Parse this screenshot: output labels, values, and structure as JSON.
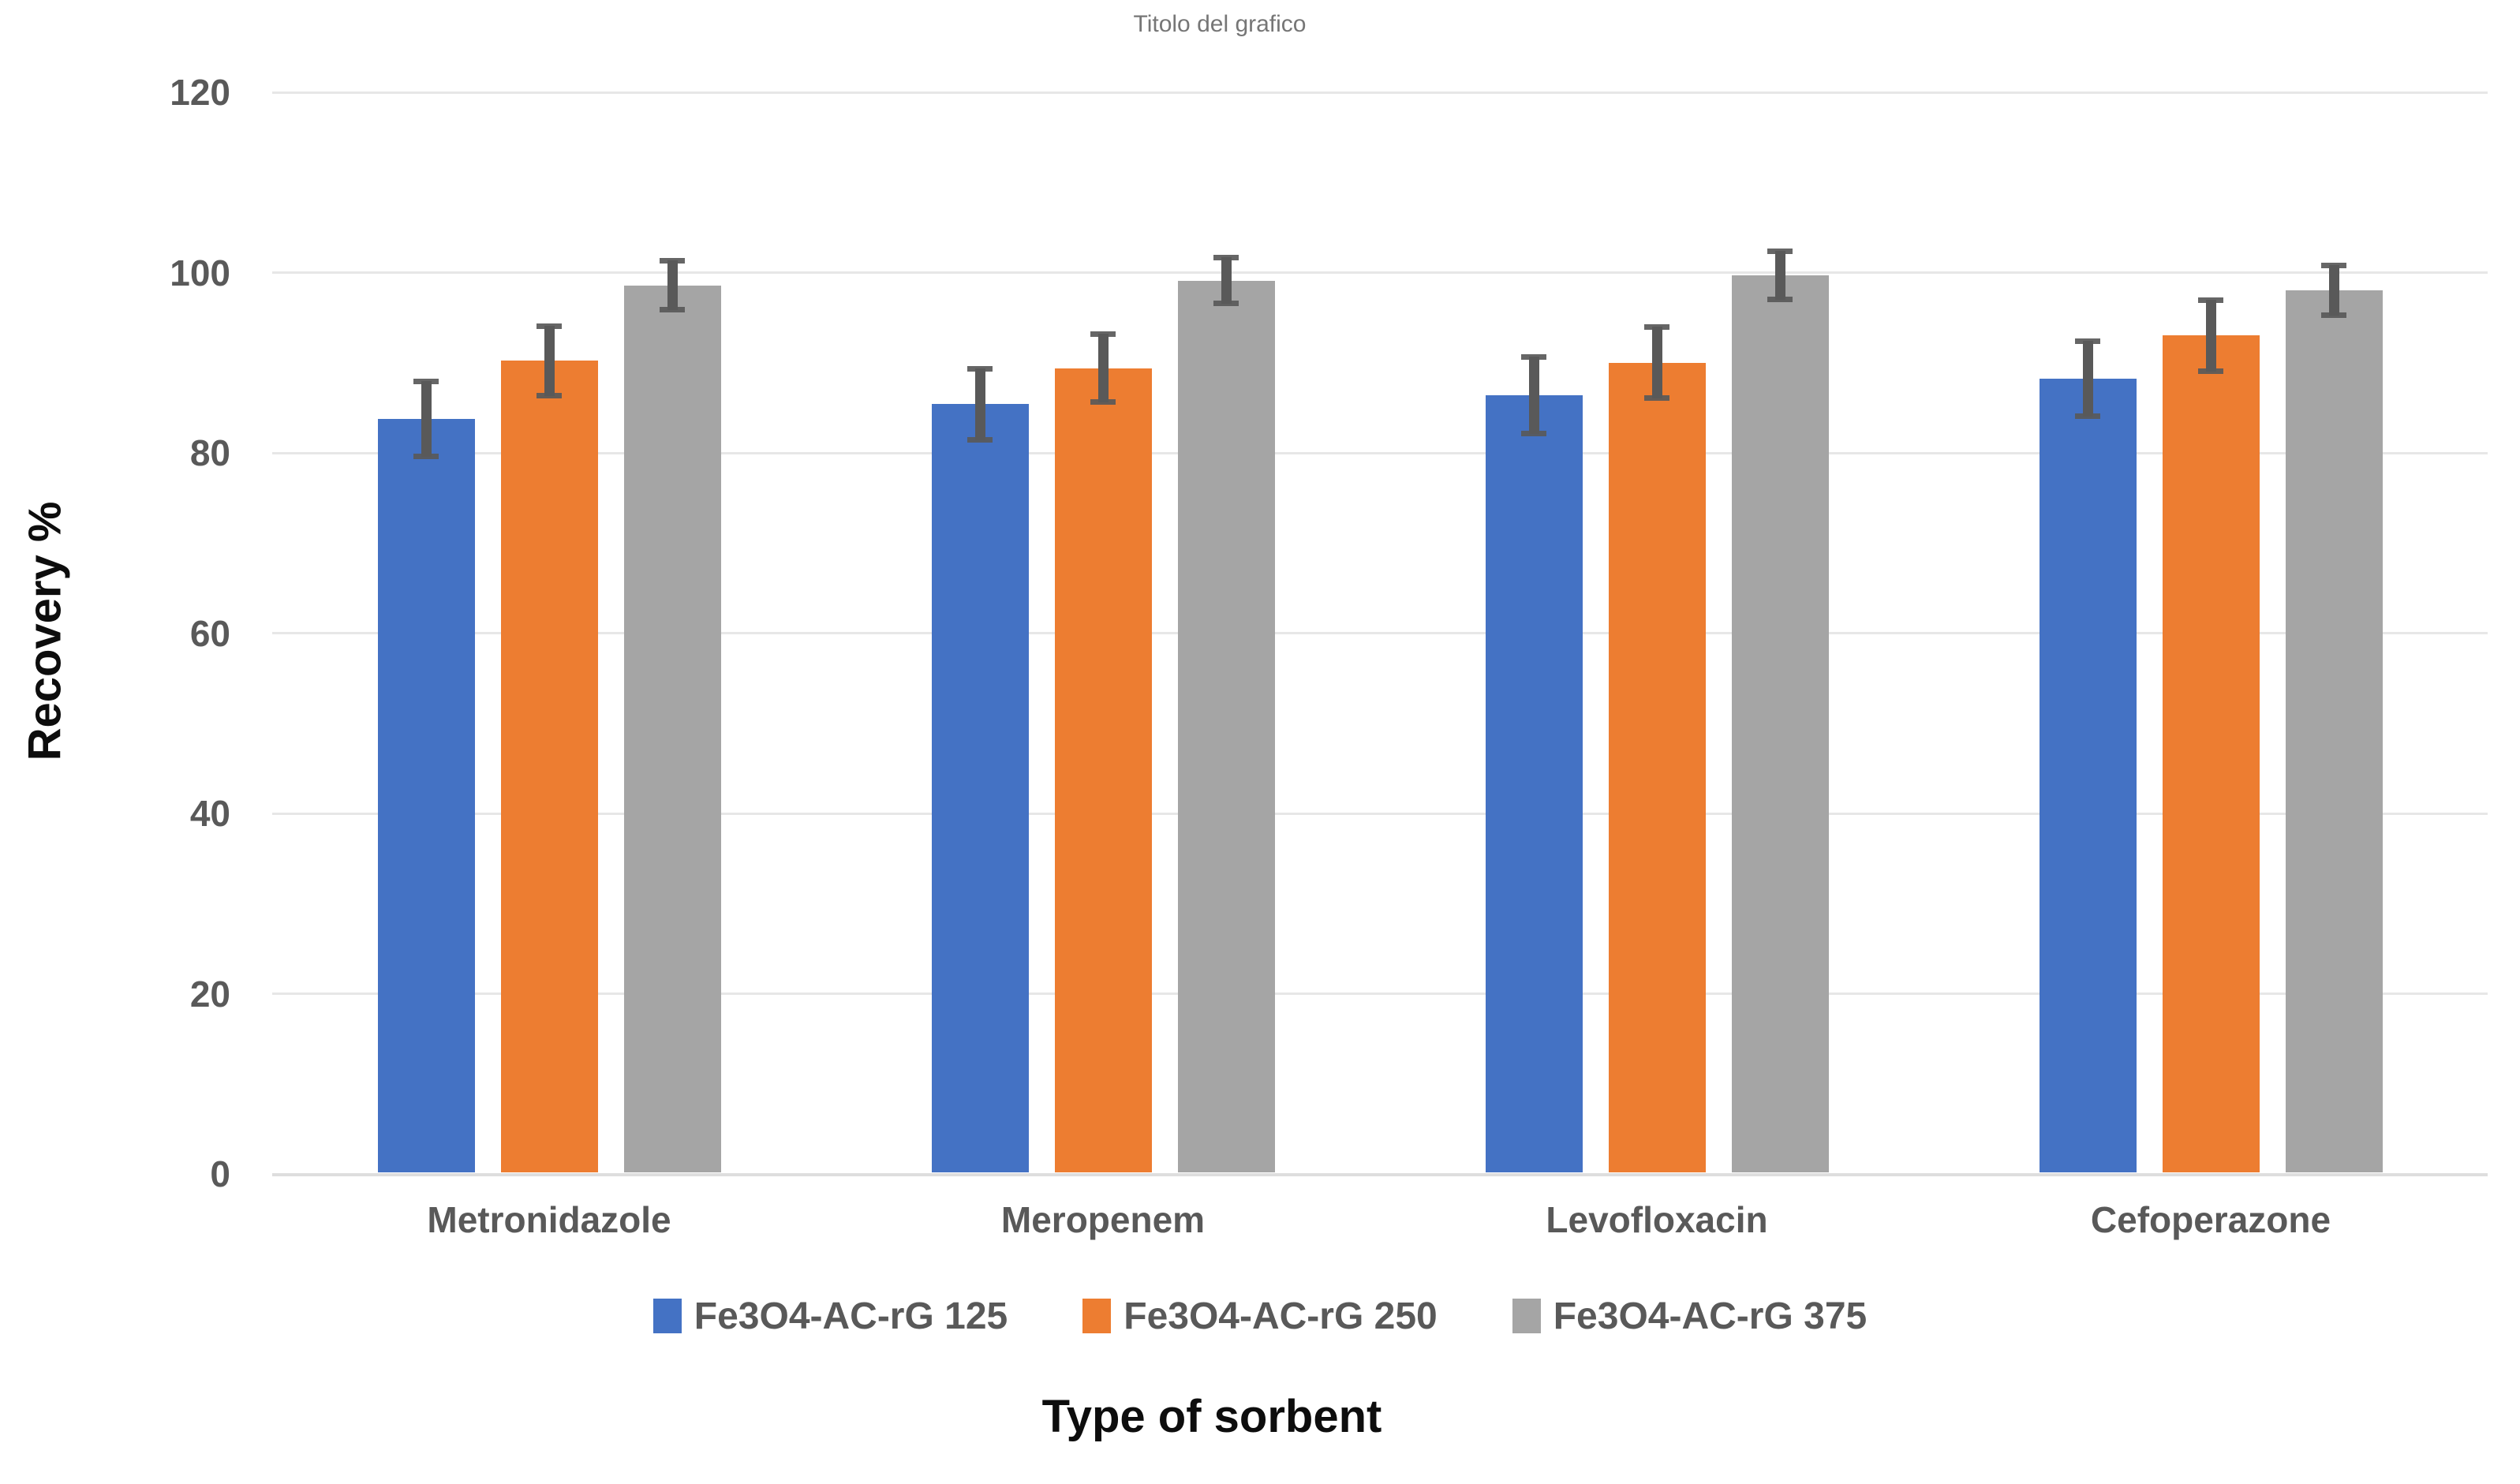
{
  "title": "Titolo del grafico",
  "chart_data": {
    "type": "bar",
    "title": "Titolo del grafico",
    "xlabel": "Type of sorbent",
    "ylabel": "Recovery %",
    "ylim": [
      0,
      120
    ],
    "yticks": [
      0,
      20,
      40,
      60,
      80,
      100,
      120
    ],
    "grid": true,
    "legend_position": "bottom",
    "error_bar_color": "#595959",
    "categories": [
      "Metronidazole",
      "Meropenem",
      "Levofloxacin",
      "Cefoperazone"
    ],
    "series": [
      {
        "name": "Fe3O4-AC-rG 125",
        "color": "#4472C4",
        "values": [
          83.8,
          85.4,
          86.4,
          88.2
        ],
        "errors": [
          4.2,
          4.0,
          4.3,
          4.2
        ]
      },
      {
        "name": "Fe3O4-AC-rG 250",
        "color": "#ED7D31",
        "values": [
          90.2,
          89.4,
          90.0,
          93.0
        ],
        "errors": [
          3.9,
          3.8,
          4.0,
          4.0
        ]
      },
      {
        "name": "Fe3O4-AC-rG 375",
        "color": "#A5A5A5",
        "values": [
          98.6,
          99.1,
          99.7,
          98.0
        ],
        "errors": [
          2.8,
          2.6,
          2.7,
          2.8
        ]
      }
    ]
  }
}
